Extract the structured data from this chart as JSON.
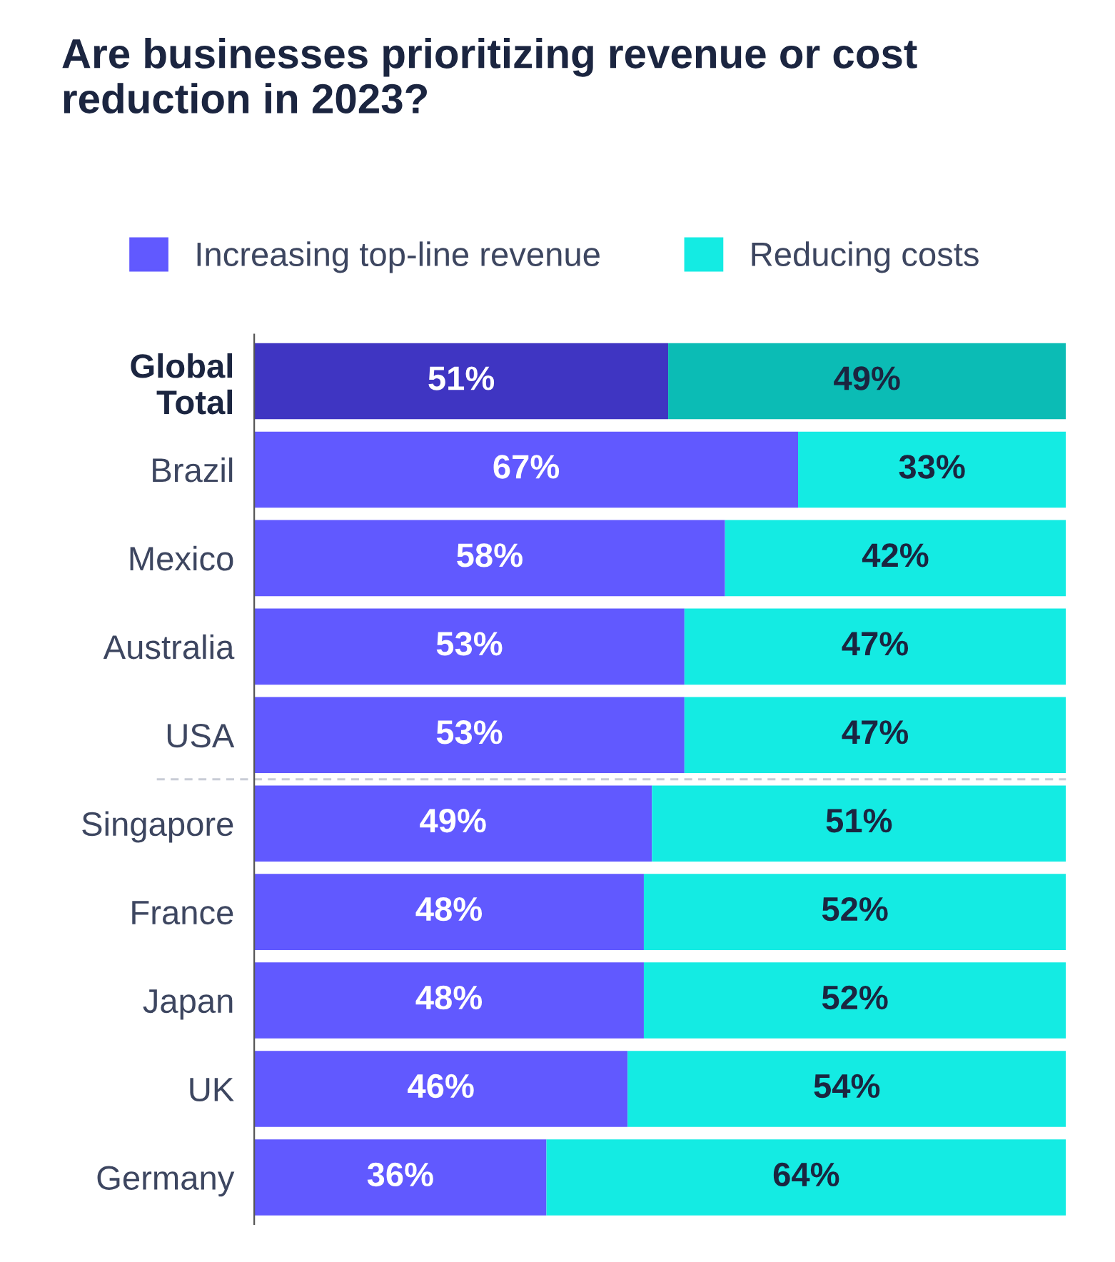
{
  "chart_data": {
    "type": "bar",
    "orientation": "horizontal",
    "stacked": true,
    "title": "Are businesses prioritizing revenue or cost reduction in 2023?",
    "categories": [
      "Global\nTotal",
      "Brazil",
      "Mexico",
      "Australia",
      "USA",
      "Singapore",
      "France",
      "Japan",
      "UK",
      "Germany"
    ],
    "series": [
      {
        "name": "Increasing top-line revenue",
        "color": "#6159ff",
        "colors": [
          "#3f35c2",
          "#6159ff",
          "#6159ff",
          "#6159ff",
          "#6159ff",
          "#6159ff",
          "#6159ff",
          "#6159ff",
          "#6159ff",
          "#6159ff"
        ],
        "values": [
          51,
          67,
          58,
          53,
          53,
          49,
          48,
          48,
          46,
          36
        ],
        "value_labels": [
          "51%",
          "67%",
          "58%",
          "53%",
          "53%",
          "49%",
          "48%",
          "48%",
          "46%",
          "36%"
        ]
      },
      {
        "name": "Reducing costs",
        "color": "#14ebe3",
        "colors": [
          "#0bbcb5",
          "#14ebe3",
          "#14ebe3",
          "#14ebe3",
          "#14ebe3",
          "#14ebe3",
          "#14ebe3",
          "#14ebe3",
          "#14ebe3",
          "#14ebe3"
        ],
        "values": [
          49,
          33,
          42,
          47,
          47,
          51,
          52,
          52,
          54,
          64
        ],
        "value_labels": [
          "49%",
          "33%",
          "42%",
          "47%",
          "47%",
          "51%",
          "52%",
          "52%",
          "54%",
          "64%"
        ]
      }
    ],
    "legend": "top left",
    "grid": false
  }
}
